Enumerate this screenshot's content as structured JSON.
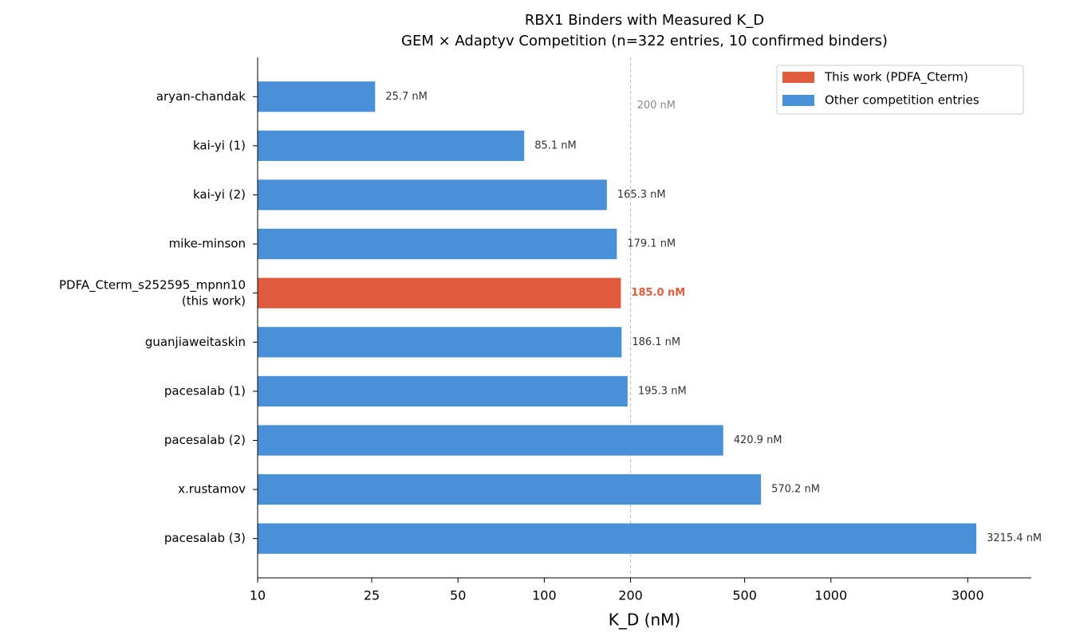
{
  "chart_data": {
    "type": "barh",
    "title": "RBX1 Binders with Measured K_D",
    "subtitle": "GEM × Adaptyv Competition (n=322 entries, 10 confirmed binders)",
    "xlabel": "K_D (nM)",
    "categories": [
      "aryan-chandak",
      "kai-yi (1)",
      "kai-yi (2)",
      "mike-minson",
      "PDFA_Cterm_s252595_mpnn10\n(this work)",
      "guanjiaweitaskin",
      "pacesalab (1)",
      "pacesalab (2)",
      "x.rustamov",
      "pacesalab (3)"
    ],
    "series": [
      {
        "name": "This work (PDFA_Cterm)",
        "color": "#e05c3c",
        "label_bold": true,
        "values": [
          null,
          null,
          null,
          null,
          185.0,
          null,
          null,
          null,
          null,
          null
        ],
        "value_labels": [
          null,
          null,
          null,
          null,
          "185.0 nM",
          null,
          null,
          null,
          null,
          null
        ]
      },
      {
        "name": "Other competition entries",
        "color": "#4a90d9",
        "label_bold": false,
        "values": [
          25.7,
          85.1,
          165.3,
          179.1,
          null,
          186.1,
          195.3,
          420.9,
          570.2,
          3215.4
        ],
        "value_labels": [
          "25.7 nM",
          "85.1 nM",
          "165.3 nM",
          "179.1 nM",
          null,
          "186.1 nM",
          "195.3 nM",
          "420.9 nM",
          "570.2 nM",
          "3215.4 nM"
        ]
      }
    ],
    "xscale": "log",
    "xlim": [
      10,
      5000
    ],
    "xticks": [
      10,
      25,
      50,
      100,
      200,
      500,
      1000,
      3000
    ],
    "reference_line": {
      "value": 200,
      "label": "200 nM"
    },
    "legend": "upper right"
  }
}
